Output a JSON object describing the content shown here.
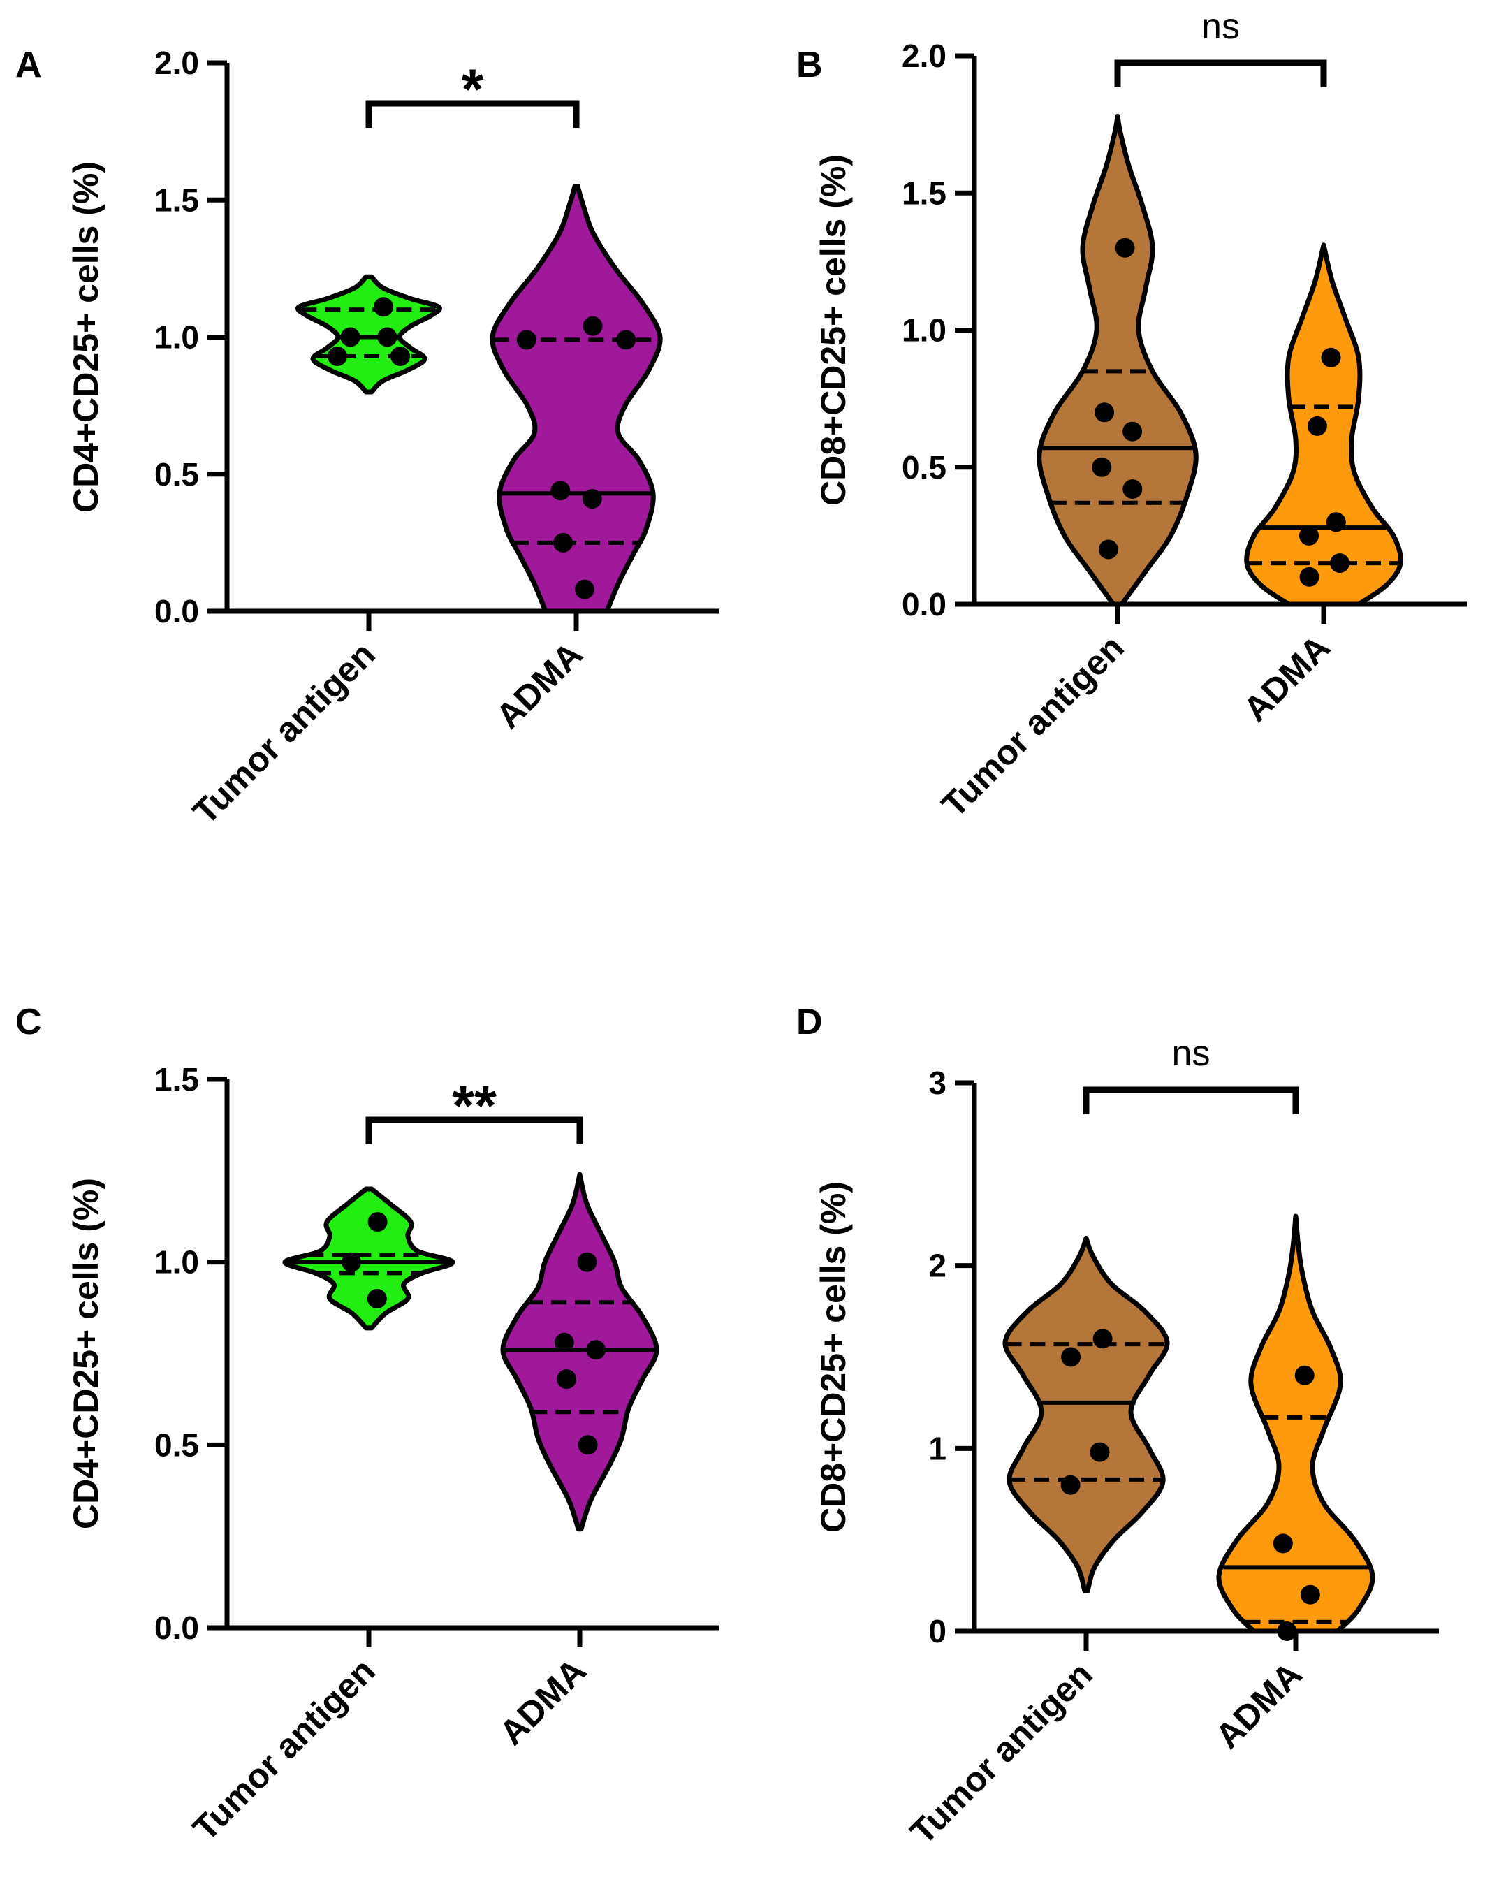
{
  "chart_data": [
    {
      "type": "violin",
      "panel": "A",
      "ylabel": "CD4+CD25+ cells (%)",
      "ylim": [
        0,
        2.0
      ],
      "yticks": [
        0.0,
        0.5,
        1.0,
        1.5,
        2.0
      ],
      "ytick_labels": [
        "0.0",
        "0.5",
        "1.0",
        "1.5",
        "2.0"
      ],
      "categories": [
        "Tumor antigen",
        "ADMA"
      ],
      "significance": "*",
      "groups": [
        {
          "name": "Tumor antigen",
          "color": "#22ee11",
          "points": [
            1.11,
            1.0,
            1.0,
            0.93,
            0.93
          ],
          "median": 1.0,
          "q1": 0.93,
          "q3": 1.1,
          "range": [
            0.8,
            1.22
          ],
          "profile": [
            [
              0.8,
              0.02
            ],
            [
              0.84,
              0.1
            ],
            [
              0.88,
              0.28
            ],
            [
              0.92,
              0.4
            ],
            [
              0.96,
              0.3
            ],
            [
              1.0,
              0.22
            ],
            [
              1.04,
              0.3
            ],
            [
              1.08,
              0.45
            ],
            [
              1.11,
              0.5
            ],
            [
              1.14,
              0.3
            ],
            [
              1.18,
              0.1
            ],
            [
              1.22,
              0.02
            ]
          ]
        },
        {
          "name": "ADMA",
          "color": "#a0199a",
          "points": [
            1.04,
            0.99,
            0.99,
            0.44,
            0.41,
            0.25,
            0.08
          ],
          "median": 0.43,
          "q1": 0.25,
          "q3": 0.99,
          "range": [
            0.0,
            1.55
          ],
          "profile": [
            [
              0.0,
              0.22
            ],
            [
              0.1,
              0.3
            ],
            [
              0.2,
              0.4
            ],
            [
              0.3,
              0.5
            ],
            [
              0.43,
              0.55
            ],
            [
              0.55,
              0.45
            ],
            [
              0.65,
              0.3
            ],
            [
              0.75,
              0.35
            ],
            [
              0.88,
              0.52
            ],
            [
              1.0,
              0.6
            ],
            [
              1.12,
              0.48
            ],
            [
              1.25,
              0.28
            ],
            [
              1.38,
              0.12
            ],
            [
              1.48,
              0.05
            ],
            [
              1.55,
              0.01
            ]
          ]
        }
      ]
    },
    {
      "type": "violin",
      "panel": "B",
      "ylabel": "CD8+CD25+ cells (%)",
      "ylim": [
        0,
        2.0
      ],
      "yticks": [
        0.0,
        0.5,
        1.0,
        1.5,
        2.0
      ],
      "ytick_labels": [
        "0.0",
        "0.5",
        "1.0",
        "1.5",
        "2.0"
      ],
      "categories": [
        "Tumor antigen",
        "ADMA"
      ],
      "significance": "ns",
      "groups": [
        {
          "name": "Tumor antigen",
          "color": "#b5763a",
          "points": [
            1.3,
            0.7,
            0.63,
            0.5,
            0.42,
            0.2
          ],
          "median": 0.57,
          "q1": 0.37,
          "q3": 0.85,
          "range": [
            0.0,
            1.78
          ],
          "profile": [
            [
              0.0,
              0.03
            ],
            [
              0.12,
              0.2
            ],
            [
              0.25,
              0.38
            ],
            [
              0.4,
              0.5
            ],
            [
              0.55,
              0.56
            ],
            [
              0.7,
              0.45
            ],
            [
              0.85,
              0.25
            ],
            [
              1.0,
              0.15
            ],
            [
              1.15,
              0.2
            ],
            [
              1.3,
              0.25
            ],
            [
              1.45,
              0.18
            ],
            [
              1.6,
              0.08
            ],
            [
              1.72,
              0.02
            ],
            [
              1.78,
              0.0
            ]
          ]
        },
        {
          "name": "ADMA",
          "color": "#ff9a0c",
          "points": [
            0.9,
            0.65,
            0.3,
            0.25,
            0.15,
            0.1
          ],
          "median": 0.28,
          "q1": 0.15,
          "q3": 0.72,
          "range": [
            0.0,
            1.31
          ],
          "profile": [
            [
              0.0,
              0.25
            ],
            [
              0.07,
              0.45
            ],
            [
              0.15,
              0.55
            ],
            [
              0.25,
              0.5
            ],
            [
              0.35,
              0.35
            ],
            [
              0.48,
              0.22
            ],
            [
              0.6,
              0.2
            ],
            [
              0.75,
              0.25
            ],
            [
              0.9,
              0.25
            ],
            [
              1.05,
              0.15
            ],
            [
              1.18,
              0.06
            ],
            [
              1.31,
              0.0
            ]
          ]
        }
      ]
    },
    {
      "type": "violin",
      "panel": "C",
      "ylabel": "CD4+CD25+ cells (%)",
      "ylim": [
        0,
        1.5
      ],
      "yticks": [
        0.0,
        0.5,
        1.0,
        1.5
      ],
      "ytick_labels": [
        "0.0",
        "0.5",
        "1.0",
        "1.5"
      ],
      "categories": [
        "Tumor antigen",
        "ADMA"
      ],
      "significance": "**",
      "groups": [
        {
          "name": "Tumor antigen",
          "color": "#22ee11",
          "points": [
            1.11,
            1.0,
            0.9
          ],
          "median": 1.0,
          "q1": 0.97,
          "q3": 1.02,
          "range": [
            0.82,
            1.2
          ],
          "profile": [
            [
              0.82,
              0.02
            ],
            [
              0.86,
              0.12
            ],
            [
              0.9,
              0.28
            ],
            [
              0.94,
              0.25
            ],
            [
              0.97,
              0.38
            ],
            [
              1.0,
              0.6
            ],
            [
              1.03,
              0.35
            ],
            [
              1.07,
              0.28
            ],
            [
              1.11,
              0.3
            ],
            [
              1.16,
              0.15
            ],
            [
              1.2,
              0.02
            ]
          ]
        },
        {
          "name": "ADMA",
          "color": "#a0199a",
          "points": [
            1.0,
            0.78,
            0.76,
            0.68,
            0.5
          ],
          "median": 0.76,
          "q1": 0.59,
          "q3": 0.89,
          "range": [
            0.27,
            1.24
          ],
          "profile": [
            [
              0.27,
              0.01
            ],
            [
              0.35,
              0.08
            ],
            [
              0.45,
              0.22
            ],
            [
              0.52,
              0.3
            ],
            [
              0.6,
              0.35
            ],
            [
              0.68,
              0.45
            ],
            [
              0.76,
              0.55
            ],
            [
              0.85,
              0.45
            ],
            [
              0.93,
              0.3
            ],
            [
              1.0,
              0.25
            ],
            [
              1.08,
              0.15
            ],
            [
              1.16,
              0.05
            ],
            [
              1.24,
              0.0
            ]
          ]
        }
      ]
    },
    {
      "type": "violin",
      "panel": "D",
      "ylabel": "CD8+CD25+ cells (%)",
      "ylim": [
        0,
        3
      ],
      "yticks": [
        0,
        1,
        2,
        3
      ],
      "ytick_labels": [
        "0",
        "1",
        "2",
        "3"
      ],
      "categories": [
        "Tumor antigen",
        "ADMA"
      ],
      "significance": "ns",
      "groups": [
        {
          "name": "Tumor antigen",
          "color": "#b5763a",
          "points": [
            1.6,
            1.5,
            0.98,
            0.8
          ],
          "median": 1.25,
          "q1": 0.83,
          "q3": 1.57,
          "range": [
            0.22,
            2.15
          ],
          "profile": [
            [
              0.22,
              0.01
            ],
            [
              0.35,
              0.06
            ],
            [
              0.5,
              0.2
            ],
            [
              0.65,
              0.4
            ],
            [
              0.82,
              0.55
            ],
            [
              1.0,
              0.45
            ],
            [
              1.2,
              0.32
            ],
            [
              1.4,
              0.45
            ],
            [
              1.58,
              0.58
            ],
            [
              1.75,
              0.42
            ],
            [
              1.9,
              0.18
            ],
            [
              2.05,
              0.05
            ],
            [
              2.15,
              0.0
            ]
          ]
        },
        {
          "name": "ADMA",
          "color": "#ff9a0c",
          "points": [
            1.4,
            0.48,
            0.2,
            0.0
          ],
          "median": 0.35,
          "q1": 0.05,
          "q3": 1.17,
          "range": [
            0.0,
            2.27
          ],
          "profile": [
            [
              0.0,
              0.3
            ],
            [
              0.12,
              0.45
            ],
            [
              0.3,
              0.55
            ],
            [
              0.5,
              0.42
            ],
            [
              0.7,
              0.2
            ],
            [
              0.9,
              0.12
            ],
            [
              1.1,
              0.2
            ],
            [
              1.35,
              0.32
            ],
            [
              1.55,
              0.25
            ],
            [
              1.75,
              0.12
            ],
            [
              1.95,
              0.05
            ],
            [
              2.1,
              0.02
            ],
            [
              2.27,
              0.0
            ]
          ]
        }
      ]
    }
  ]
}
